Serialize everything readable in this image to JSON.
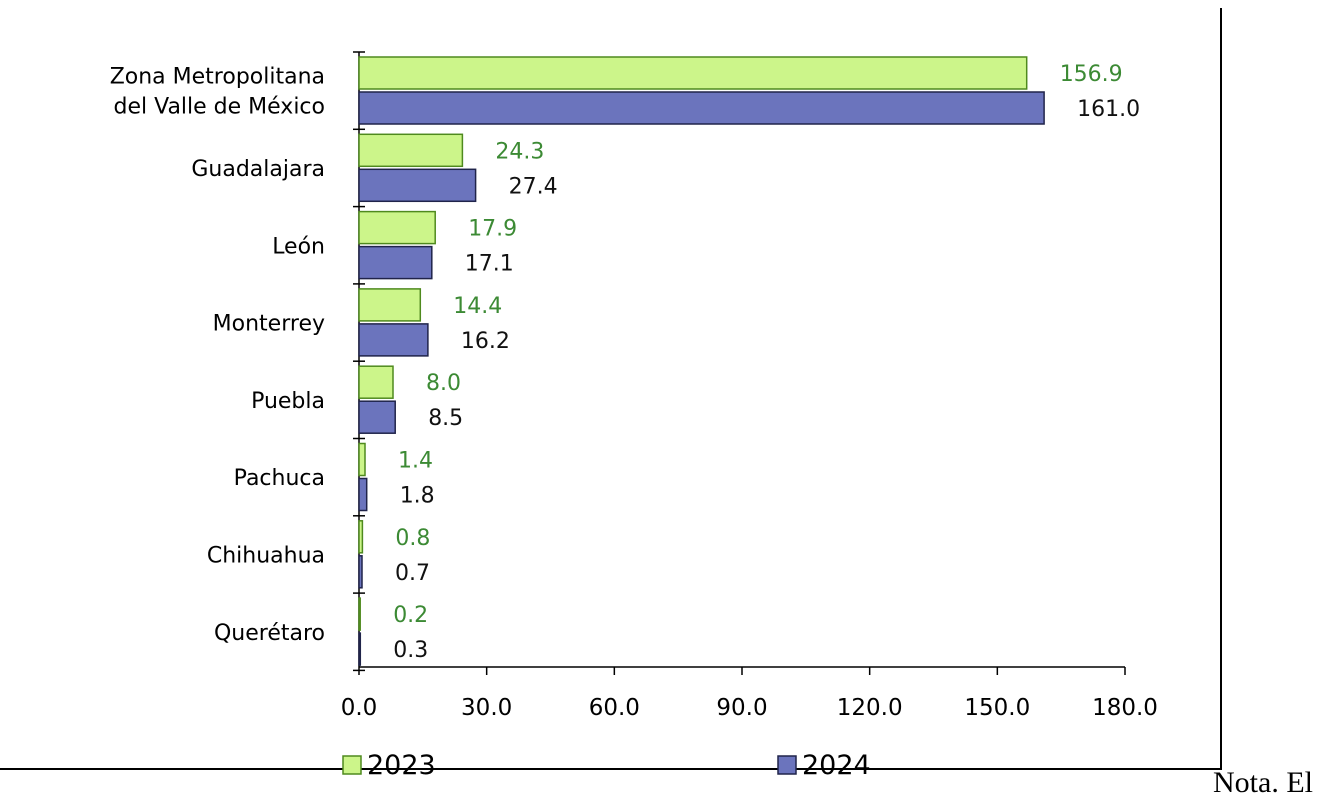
{
  "chart_data": {
    "type": "bar",
    "orientation": "horizontal",
    "categories": [
      [
        "Zona Metropolitana",
        "del Valle de México"
      ],
      [
        "Guadalajara"
      ],
      [
        "León"
      ],
      [
        "Monterrey"
      ],
      [
        "Puebla"
      ],
      [
        "Pachuca"
      ],
      [
        "Chihuahua"
      ],
      [
        "Querétaro"
      ]
    ],
    "series": [
      {
        "name": "2023",
        "values": [
          156.9,
          24.3,
          17.9,
          14.4,
          8.0,
          1.4,
          0.8,
          0.2
        ],
        "labels": [
          "156.9",
          "24.3",
          "17.9",
          "14.4",
          "8.0",
          "1.4",
          "0.8",
          "0.2"
        ],
        "fill": "#ccf58a",
        "stroke": "#4f8a1e",
        "label_color": "#3c8a34"
      },
      {
        "name": "2024",
        "values": [
          161.0,
          27.4,
          17.1,
          16.2,
          8.5,
          1.8,
          0.7,
          0.3
        ],
        "labels": [
          "161.0",
          "27.4",
          "17.1",
          "16.2",
          "8.5",
          "1.8",
          "0.7",
          "0.3"
        ],
        "fill": "#6b74bd",
        "stroke": "#20244a",
        "label_color": "#111111"
      }
    ],
    "xlim": [
      0,
      180
    ],
    "xticks": [
      0,
      30,
      60,
      90,
      120,
      150,
      180
    ],
    "xtick_labels": [
      "0.0",
      "30.0",
      "60.0",
      "90.0",
      "120.0",
      "150.0",
      "180.0"
    ],
    "grid": false,
    "legend_position": "bottom"
  },
  "note_text": "Nota. El"
}
